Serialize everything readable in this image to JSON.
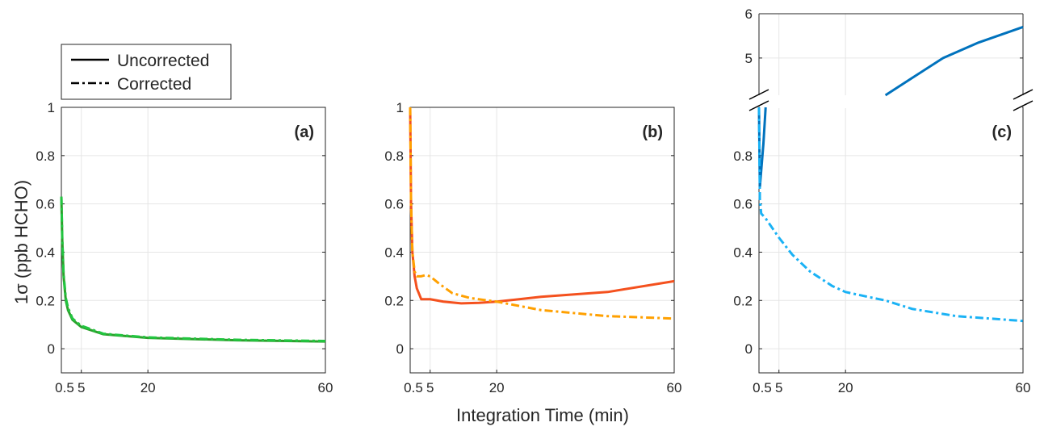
{
  "chart_data": [
    {
      "type": "line",
      "panel_label": "(a)",
      "xlim": [
        0.5,
        60
      ],
      "ylim": [
        -0.1,
        1
      ],
      "xticks": [
        "0.5",
        "5",
        "20",
        "60"
      ],
      "xtick_values": [
        0.5,
        5,
        20,
        60
      ],
      "yticks": [
        "0",
        "0.2",
        "0.4",
        "0.6",
        "0.8",
        "1"
      ],
      "ytick_values": [
        0,
        0.2,
        0.4,
        0.6,
        0.8,
        1
      ],
      "grid": true,
      "series": [
        {
          "style": "Uncorrected",
          "color": "#2ca02c",
          "x": [
            0.5,
            0.7,
            1,
            1.5,
            2,
            3,
            5,
            10,
            20,
            40,
            60
          ],
          "y": [
            0.63,
            0.45,
            0.3,
            0.2,
            0.16,
            0.12,
            0.09,
            0.06,
            0.045,
            0.035,
            0.03
          ]
        },
        {
          "style": "Corrected",
          "color": "#22c540",
          "x": [
            0.5,
            0.7,
            1,
            1.5,
            2,
            3,
            5,
            10,
            20,
            40,
            60
          ],
          "y": [
            0.63,
            0.46,
            0.31,
            0.21,
            0.17,
            0.125,
            0.095,
            0.062,
            0.047,
            0.037,
            0.032
          ]
        }
      ]
    },
    {
      "type": "line",
      "panel_label": "(b)",
      "xlim": [
        0.5,
        60
      ],
      "ylim": [
        -0.1,
        1
      ],
      "xticks": [
        "0.5",
        "5",
        "20",
        "60"
      ],
      "xtick_values": [
        0.5,
        5,
        20,
        60
      ],
      "yticks": [
        "0",
        "0.2",
        "0.4",
        "0.6",
        "0.8",
        "1"
      ],
      "ytick_values": [
        0,
        0.2,
        0.4,
        0.6,
        0.8,
        1
      ],
      "grid": true,
      "series": [
        {
          "style": "Uncorrected",
          "color": "#f4511e",
          "x": [
            0.5,
            0.7,
            1,
            1.5,
            2,
            3,
            5,
            8,
            12,
            16,
            20,
            30,
            45,
            60
          ],
          "y": [
            1,
            0.6,
            0.4,
            0.3,
            0.25,
            0.205,
            0.205,
            0.195,
            0.188,
            0.19,
            0.195,
            0.215,
            0.235,
            0.28
          ]
        },
        {
          "style": "Corrected",
          "color": "#ffa000",
          "x": [
            0.5,
            0.7,
            1,
            1.5,
            2,
            3,
            4,
            5,
            7,
            10,
            14,
            20,
            30,
            45,
            60
          ],
          "y": [
            1,
            0.6,
            0.4,
            0.32,
            0.3,
            0.3,
            0.305,
            0.3,
            0.27,
            0.23,
            0.21,
            0.195,
            0.16,
            0.135,
            0.125
          ]
        }
      ]
    },
    {
      "type": "line",
      "panel_label": "(c)",
      "xlim": [
        0.5,
        60
      ],
      "ylim_lower": [
        -0.1,
        1
      ],
      "ylim_upper": [
        4.16,
        6
      ],
      "broken_axis": true,
      "xticks": [
        "0.5",
        "5",
        "20",
        "60"
      ],
      "xtick_values": [
        0.5,
        5,
        20,
        60
      ],
      "yticks": [
        "0",
        "0.2",
        "0.4",
        "0.6",
        "0.8",
        "5",
        "6"
      ],
      "ytick_values": [
        0,
        0.2,
        0.4,
        0.6,
        0.8,
        5,
        6
      ],
      "grid": true,
      "series": [
        {
          "style": "Uncorrected",
          "color": "#0072bd",
          "x": [
            0.5,
            0.7,
            1.5,
            2,
            29,
            35,
            42,
            50,
            60
          ],
          "y": [
            1,
            0.67,
            0.85,
            1,
            4.16,
            4.55,
            5.0,
            5.35,
            5.7
          ]
        },
        {
          "style": "Corrected",
          "color": "#1ab2f5",
          "x": [
            0.5,
            0.7,
            1,
            2,
            3.5,
            5,
            8,
            12,
            17,
            20,
            25,
            29,
            35,
            45,
            60
          ],
          "y": [
            1,
            0.62,
            0.56,
            0.54,
            0.5,
            0.46,
            0.39,
            0.32,
            0.26,
            0.235,
            0.215,
            0.2,
            0.165,
            0.135,
            0.115
          ]
        }
      ]
    }
  ],
  "legend": {
    "position": "top-left",
    "items": [
      {
        "label": "Uncorrected",
        "dash": "solid"
      },
      {
        "label": "Corrected",
        "dash": "dash-dot"
      }
    ]
  },
  "ylabel": "1σ (ppb HCHO)",
  "xlabel": "Integration Time (min)"
}
